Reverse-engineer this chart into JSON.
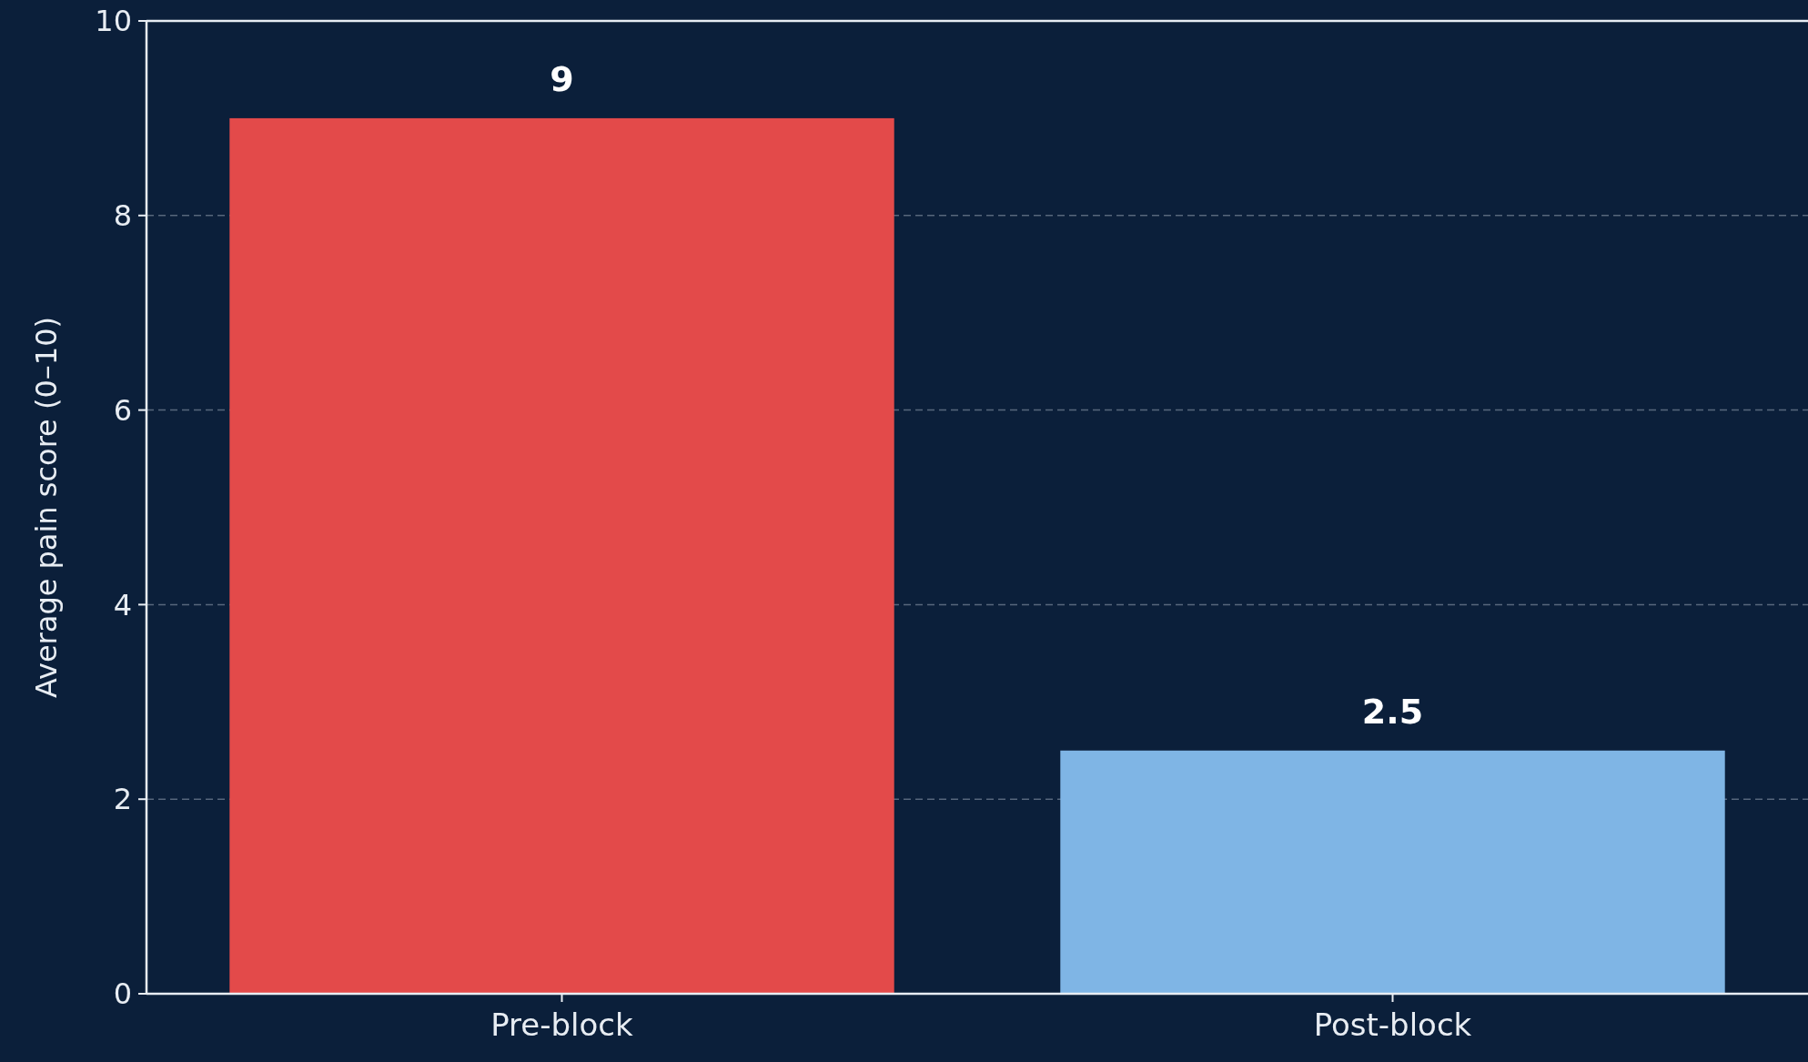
{
  "chart_data": {
    "type": "bar",
    "ylabel": "Average pain score (0–10)",
    "categories": [
      "Pre-block",
      "Post-block"
    ],
    "values": [
      9,
      2.5
    ],
    "colors": [
      "#e34a4a",
      "#7fb5e5"
    ],
    "ylim": [
      0,
      10
    ],
    "yticks": [
      0,
      2,
      4,
      6,
      8,
      10
    ],
    "grid": "y",
    "data_labels": true
  }
}
